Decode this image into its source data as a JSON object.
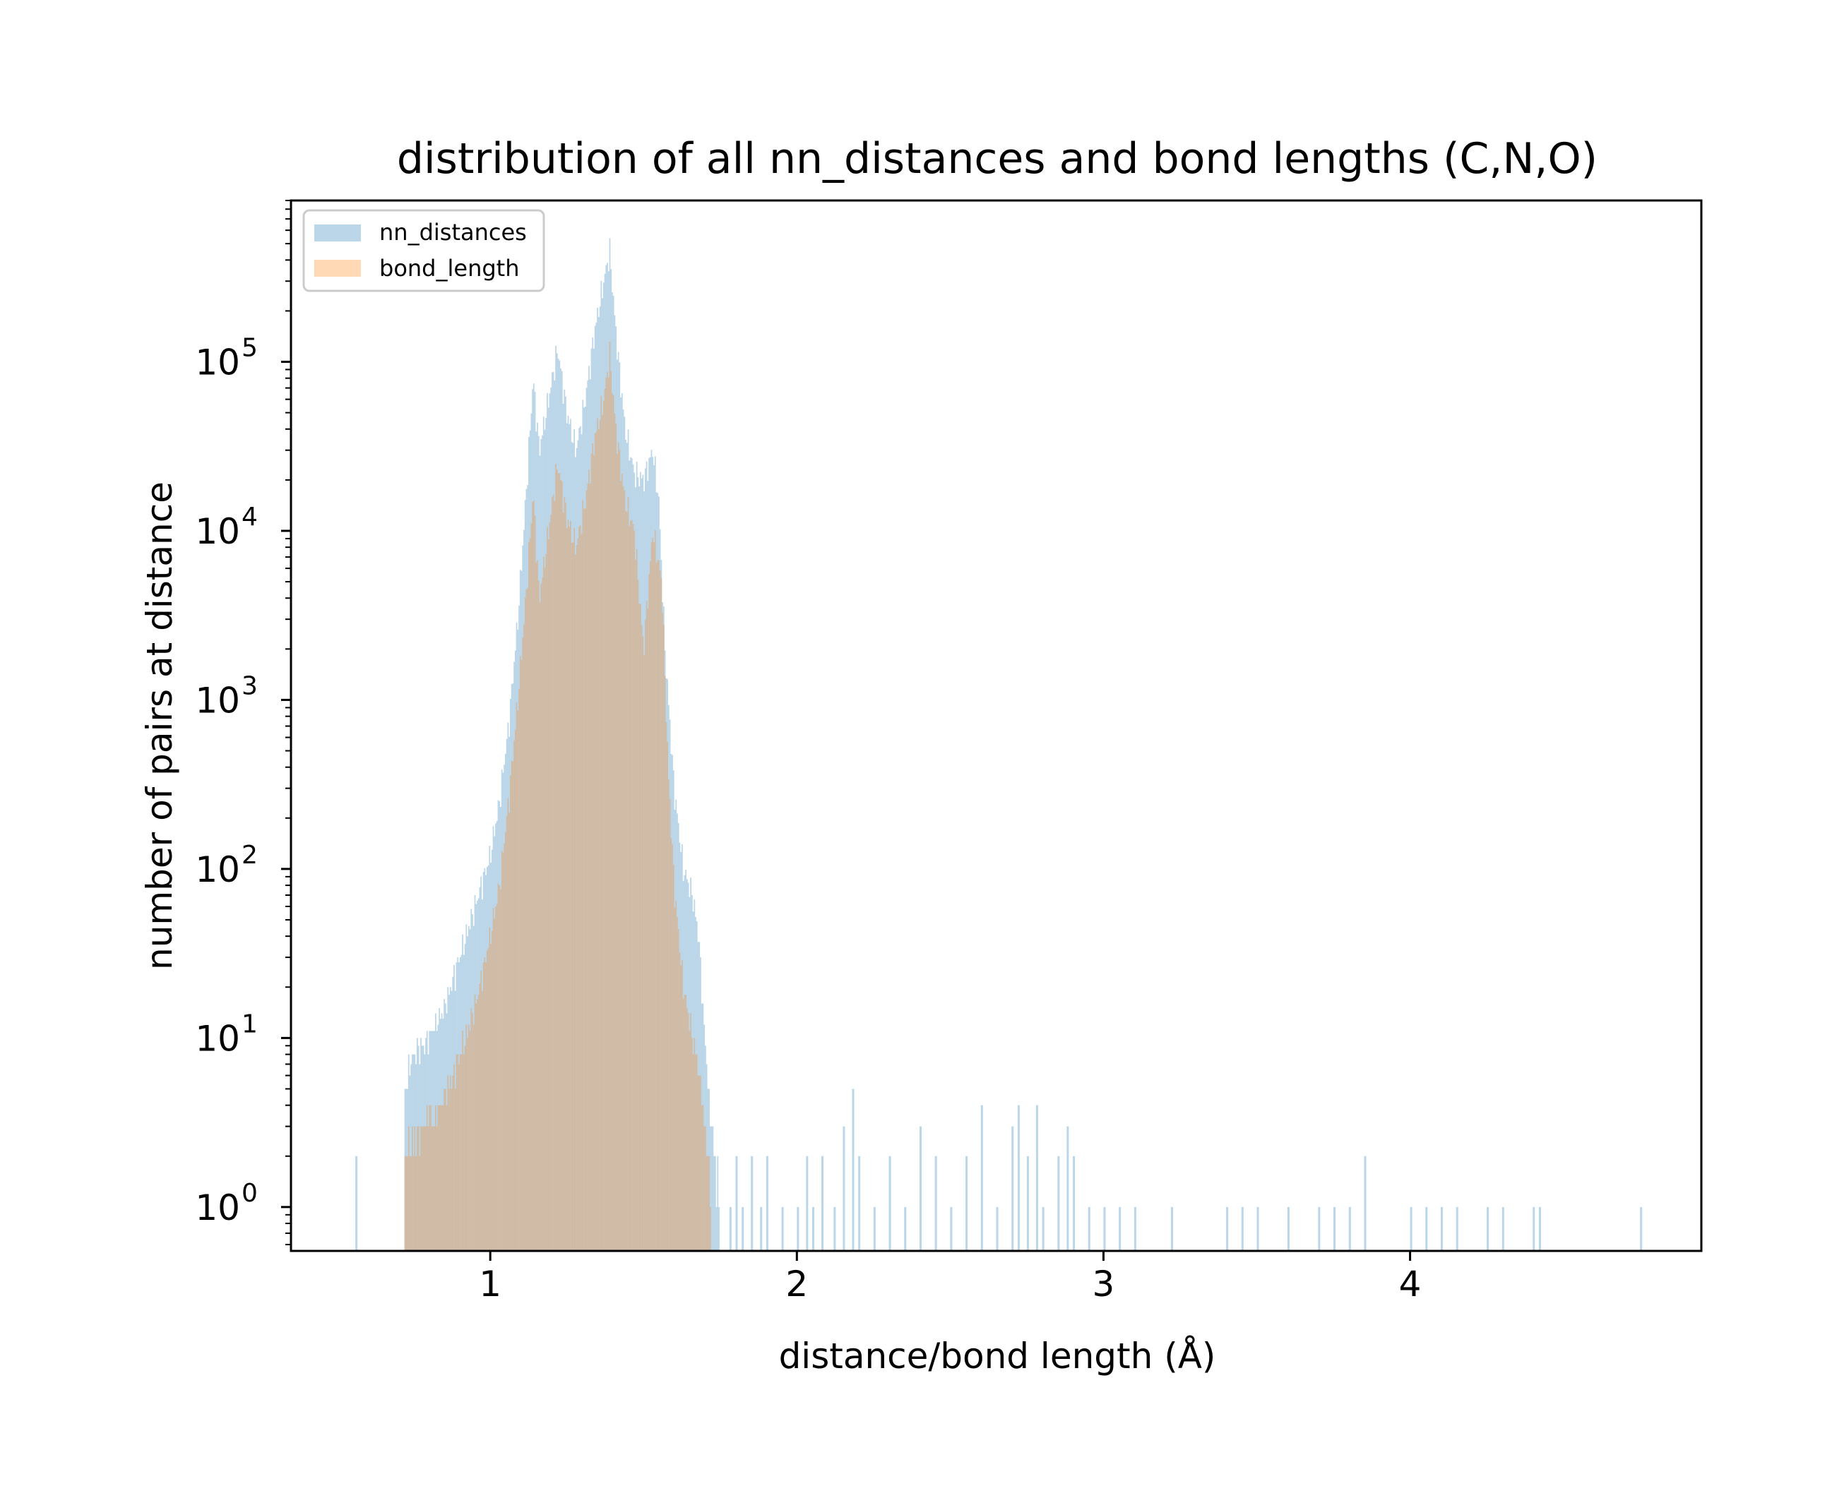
{
  "chart_data": {
    "type": "histogram",
    "title": "distribution of all nn_distances and bond lengths (C,N,O)",
    "xlabel": "distance/bond length (Å)",
    "ylabel": "number of pairs at distance",
    "xlim": [
      0.35,
      4.95
    ],
    "ylim": [
      0.55,
      900000
    ],
    "yscale": "log",
    "grid": false,
    "legend_position": "upper left",
    "x_ticks": [
      {
        "value": 1,
        "label": "1"
      },
      {
        "value": 2,
        "label": "2"
      },
      {
        "value": 3,
        "label": "3"
      },
      {
        "value": 4,
        "label": "4"
      }
    ],
    "y_ticks": [
      {
        "value": 1,
        "base": "10",
        "exp": "0"
      },
      {
        "value": 10,
        "base": "10",
        "exp": "1"
      },
      {
        "value": 100,
        "base": "10",
        "exp": "2"
      },
      {
        "value": 1000,
        "base": "10",
        "exp": "3"
      },
      {
        "value": 10000,
        "base": "10",
        "exp": "4"
      },
      {
        "value": 100000,
        "base": "10",
        "exp": "5"
      }
    ],
    "series": [
      {
        "name": "nn_distances",
        "color": "#1f77b4",
        "opacity": 0.3,
        "profile": [
          [
            0.72,
            5
          ],
          [
            0.75,
            8
          ],
          [
            0.8,
            10
          ],
          [
            0.85,
            15
          ],
          [
            0.9,
            30
          ],
          [
            0.95,
            60
          ],
          [
            1.0,
            120
          ],
          [
            1.03,
            250
          ],
          [
            1.06,
            700
          ],
          [
            1.09,
            3000
          ],
          [
            1.12,
            20000
          ],
          [
            1.14,
            80000
          ],
          [
            1.16,
            30000
          ],
          [
            1.19,
            60000
          ],
          [
            1.22,
            120000
          ],
          [
            1.25,
            50000
          ],
          [
            1.28,
            30000
          ],
          [
            1.31,
            60000
          ],
          [
            1.34,
            150000
          ],
          [
            1.37,
            300000
          ],
          [
            1.39,
            450000
          ],
          [
            1.41,
            150000
          ],
          [
            1.44,
            40000
          ],
          [
            1.47,
            22000
          ],
          [
            1.5,
            20000
          ],
          [
            1.53,
            30000
          ],
          [
            1.55,
            15000
          ],
          [
            1.57,
            2000
          ],
          [
            1.6,
            300
          ],
          [
            1.63,
            100
          ],
          [
            1.66,
            70
          ],
          [
            1.68,
            40
          ],
          [
            1.7,
            10
          ],
          [
            1.72,
            3
          ],
          [
            1.75,
            1
          ]
        ],
        "sparse_bins": [
          [
            0.56,
            2
          ],
          [
            1.78,
            1
          ],
          [
            1.8,
            2
          ],
          [
            1.82,
            1
          ],
          [
            1.85,
            2
          ],
          [
            1.88,
            1
          ],
          [
            1.9,
            2
          ],
          [
            1.95,
            1
          ],
          [
            2.0,
            1
          ],
          [
            2.03,
            2
          ],
          [
            2.05,
            1
          ],
          [
            2.08,
            2
          ],
          [
            2.12,
            1
          ],
          [
            2.15,
            3
          ],
          [
            2.18,
            5
          ],
          [
            2.2,
            2
          ],
          [
            2.25,
            1
          ],
          [
            2.3,
            2
          ],
          [
            2.35,
            1
          ],
          [
            2.4,
            3
          ],
          [
            2.45,
            2
          ],
          [
            2.5,
            1
          ],
          [
            2.55,
            2
          ],
          [
            2.6,
            4
          ],
          [
            2.65,
            1
          ],
          [
            2.7,
            3
          ],
          [
            2.72,
            4
          ],
          [
            2.75,
            2
          ],
          [
            2.78,
            4
          ],
          [
            2.8,
            1
          ],
          [
            2.85,
            2
          ],
          [
            2.88,
            3
          ],
          [
            2.9,
            2
          ],
          [
            2.95,
            1
          ],
          [
            3.0,
            1
          ],
          [
            3.05,
            1
          ],
          [
            3.1,
            1
          ],
          [
            3.22,
            1
          ],
          [
            3.4,
            1
          ],
          [
            3.45,
            1
          ],
          [
            3.5,
            1
          ],
          [
            3.6,
            1
          ],
          [
            3.7,
            1
          ],
          [
            3.75,
            1
          ],
          [
            3.8,
            1
          ],
          [
            3.85,
            2
          ],
          [
            4.0,
            1
          ],
          [
            4.05,
            1
          ],
          [
            4.1,
            1
          ],
          [
            4.15,
            1
          ],
          [
            4.25,
            1
          ],
          [
            4.3,
            1
          ],
          [
            4.4,
            1
          ],
          [
            4.42,
            1
          ],
          [
            4.75,
            1
          ]
        ]
      },
      {
        "name": "bond_length",
        "color": "#ff7f0e",
        "opacity": 0.3,
        "profile": [
          [
            0.72,
            2
          ],
          [
            0.78,
            3
          ],
          [
            0.84,
            4
          ],
          [
            0.9,
            8
          ],
          [
            0.95,
            15
          ],
          [
            1.0,
            40
          ],
          [
            1.03,
            80
          ],
          [
            1.06,
            250
          ],
          [
            1.09,
            1000
          ],
          [
            1.12,
            5000
          ],
          [
            1.14,
            17000
          ],
          [
            1.16,
            4000
          ],
          [
            1.19,
            10000
          ],
          [
            1.22,
            25000
          ],
          [
            1.25,
            12000
          ],
          [
            1.28,
            8000
          ],
          [
            1.31,
            15000
          ],
          [
            1.34,
            35000
          ],
          [
            1.37,
            60000
          ],
          [
            1.39,
            110000
          ],
          [
            1.41,
            40000
          ],
          [
            1.44,
            15000
          ],
          [
            1.47,
            10000
          ],
          [
            1.5,
            2000
          ],
          [
            1.53,
            10000
          ],
          [
            1.56,
            5000
          ],
          [
            1.58,
            400
          ],
          [
            1.6,
            80
          ],
          [
            1.63,
            20
          ],
          [
            1.66,
            10
          ],
          [
            1.69,
            5
          ],
          [
            1.72,
            1
          ]
        ],
        "sparse_bins": []
      }
    ]
  }
}
